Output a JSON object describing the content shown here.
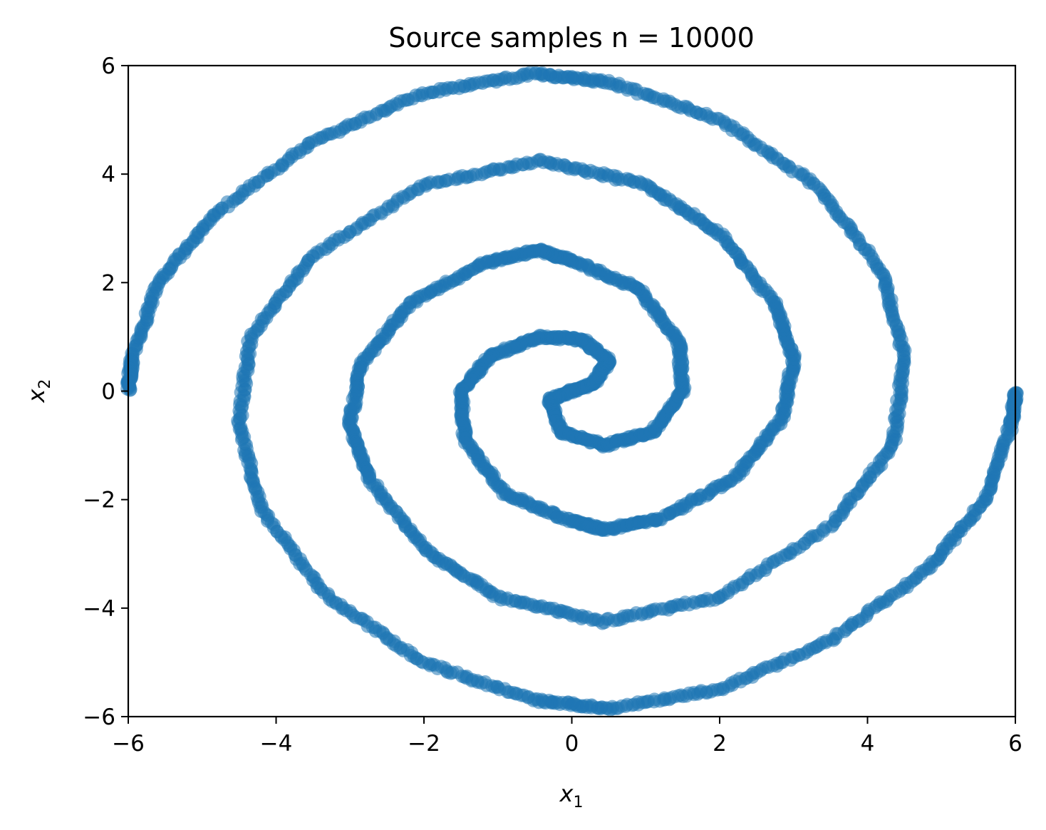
{
  "chart_data": {
    "type": "scatter",
    "title": "Source samples n = 10000",
    "xlabel": {
      "base": "x",
      "sub": "1"
    },
    "ylabel": {
      "base": "x",
      "sub": "2"
    },
    "xlim": [
      -6,
      6
    ],
    "ylim": [
      -6,
      6
    ],
    "xticks": [
      -6,
      -4,
      -2,
      0,
      2,
      4,
      6
    ],
    "yticks": [
      -6,
      -4,
      -2,
      0,
      2,
      4,
      6
    ],
    "xtick_labels": [
      "−6",
      "−4",
      "−2",
      "0",
      "2",
      "4",
      "6"
    ],
    "ytick_labels": [
      "−6",
      "−4",
      "−2",
      "0",
      "2",
      "4",
      "6"
    ],
    "grid": false,
    "legend": "none",
    "point_color": "#1f77b4",
    "n_points": 10000,
    "series": [
      {
        "shape": "two-arm spiral (Archimedean)",
        "arm_1_points": [
          [
            0.0,
            0.0
          ],
          [
            0.3,
            0.15
          ],
          [
            0.5,
            0.55
          ],
          [
            0.15,
            0.95
          ],
          [
            -0.45,
            1.0
          ],
          [
            -1.1,
            0.65
          ],
          [
            -1.5,
            0.0
          ],
          [
            -1.45,
            -0.9
          ],
          [
            -0.9,
            -1.9
          ],
          [
            0.0,
            -2.4
          ],
          [
            0.45,
            -2.55
          ],
          [
            1.2,
            -2.35
          ],
          [
            2.2,
            -1.6
          ],
          [
            2.85,
            -0.5
          ],
          [
            3.0,
            0.6
          ],
          [
            2.75,
            1.6
          ],
          [
            2.0,
            2.9
          ],
          [
            1.0,
            3.8
          ],
          [
            -0.4,
            4.25
          ],
          [
            -2.0,
            3.8
          ],
          [
            -3.5,
            2.5
          ],
          [
            -4.35,
            1.0
          ],
          [
            -4.5,
            -0.6
          ],
          [
            -4.2,
            -2.2
          ],
          [
            -3.3,
            -3.8
          ],
          [
            -2.0,
            -5.0
          ],
          [
            -0.5,
            -5.7
          ],
          [
            0.5,
            -5.85
          ],
          [
            2.0,
            -5.5
          ],
          [
            3.5,
            -4.6
          ],
          [
            4.8,
            -3.3
          ],
          [
            5.6,
            -2.0
          ],
          [
            5.95,
            -0.6
          ],
          [
            6.0,
            0.0
          ]
        ]
      },
      {
        "shape": "two-arm spiral (Archimedean)",
        "arm_2_points": [
          [
            0.0,
            0.0
          ],
          [
            -0.3,
            -0.15
          ],
          [
            -0.15,
            -0.75
          ],
          [
            0.45,
            -1.0
          ],
          [
            1.1,
            -0.75
          ],
          [
            1.5,
            0.0
          ],
          [
            1.45,
            0.9
          ],
          [
            0.9,
            1.9
          ],
          [
            0.0,
            2.4
          ],
          [
            -0.45,
            2.6
          ],
          [
            -1.2,
            2.35
          ],
          [
            -2.2,
            1.6
          ],
          [
            -2.85,
            0.5
          ],
          [
            -3.0,
            -0.6
          ],
          [
            -2.75,
            -1.6
          ],
          [
            -2.0,
            -2.9
          ],
          [
            -1.0,
            -3.8
          ],
          [
            0.4,
            -4.25
          ],
          [
            2.0,
            -3.8
          ],
          [
            3.5,
            -2.5
          ],
          [
            4.35,
            -1.0
          ],
          [
            4.5,
            0.6
          ],
          [
            4.2,
            2.2
          ],
          [
            3.3,
            3.8
          ],
          [
            2.0,
            5.0
          ],
          [
            0.5,
            5.7
          ],
          [
            -0.5,
            5.85
          ],
          [
            -2.0,
            5.5
          ],
          [
            -3.5,
            4.6
          ],
          [
            -4.8,
            3.3
          ],
          [
            -5.6,
            2.0
          ],
          [
            -5.95,
            0.6
          ],
          [
            -6.0,
            0.0
          ]
        ]
      }
    ]
  }
}
